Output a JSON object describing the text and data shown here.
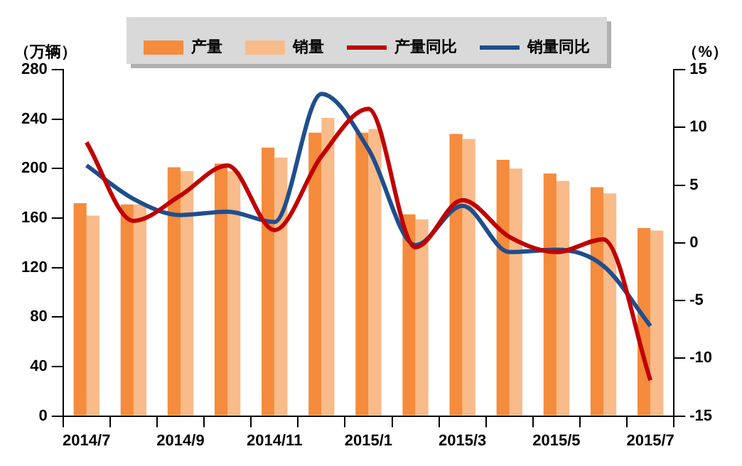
{
  "chart_data": {
    "type": "bar",
    "categories": [
      "2014/7",
      null,
      "2014/9",
      null,
      "2014/11",
      null,
      "2015/1",
      null,
      "2015/3",
      null,
      "2015/5",
      null,
      "2015/7"
    ],
    "series": [
      {
        "name": "产量",
        "color": "#f58b3c",
        "values": [
          172,
          171,
          201,
          204,
          217,
          229,
          229,
          163,
          228,
          207,
          196,
          185,
          152
        ]
      },
      {
        "name": "销量",
        "color": "#f9bb8a",
        "values": [
          162,
          171,
          198,
          198,
          209,
          241,
          232,
          159,
          224,
          200,
          190,
          180,
          150
        ]
      },
      {
        "name": "产量同比",
        "type": "line",
        "axis": "y2",
        "color": "#c00000",
        "values": [
          8.7,
          1.9,
          4.1,
          6.7,
          1.1,
          7.5,
          11.6,
          -0.4,
          3.7,
          0.5,
          -0.8,
          0.3,
          -11.9
        ]
      },
      {
        "name": "销量同比",
        "type": "line",
        "axis": "y2",
        "color": "#1f4e8c",
        "values": [
          6.7,
          3.8,
          2.4,
          2.7,
          1.8,
          12.9,
          8.1,
          -0.2,
          3.2,
          -0.8,
          -0.6,
          -2.0,
          -7.2
        ]
      }
    ],
    "ylabel": "（万辆）",
    "y2label": "（%）",
    "ylim": [
      0,
      280
    ],
    "yticks": [
      0,
      40,
      80,
      120,
      160,
      200,
      240,
      280
    ],
    "y2lim": [
      -15,
      15
    ],
    "y2ticks": [
      -15,
      -10,
      -5,
      0,
      5,
      10,
      15
    ],
    "legend": "top",
    "grid": false,
    "marker": "none"
  }
}
